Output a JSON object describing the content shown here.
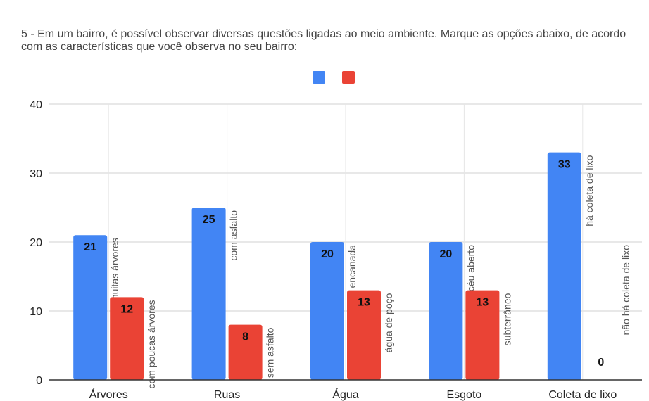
{
  "title": "5 - Em um bairro, é possível observar diversas questões ligadas ao meio ambiente. Marque as opções abaixo, de acordo com as características que você observa no seu bairro:",
  "chart_data": {
    "type": "bar",
    "title": "5 - Em um bairro, é possível observar diversas questões ligadas ao meio ambiente. Marque as opções abaixo, de acordo com as características que você observa no seu bairro:",
    "categories": [
      "Árvores",
      "Ruas",
      "Água",
      "Esgoto",
      "Coleta de lixo"
    ],
    "series": [
      {
        "color": "#4285f4",
        "values": [
          21,
          25,
          20,
          20,
          33
        ]
      },
      {
        "color": "#ea4335",
        "values": [
          12,
          8,
          13,
          13,
          0
        ]
      }
    ],
    "bar_labels": [
      [
        "com muitas árvores",
        "com poucas árvores"
      ],
      [
        "com asfalto",
        "sem asfalto"
      ],
      [
        "água encanada",
        "água de poço"
      ],
      [
        "a céu aberto",
        "subterrâneo"
      ],
      [
        "há coleta de lixo",
        "não há coleta de lixo"
      ]
    ],
    "yticks": [
      0,
      10,
      20,
      30,
      40
    ],
    "ylim": [
      0,
      40
    ],
    "grid": true,
    "legend": "top-center"
  }
}
